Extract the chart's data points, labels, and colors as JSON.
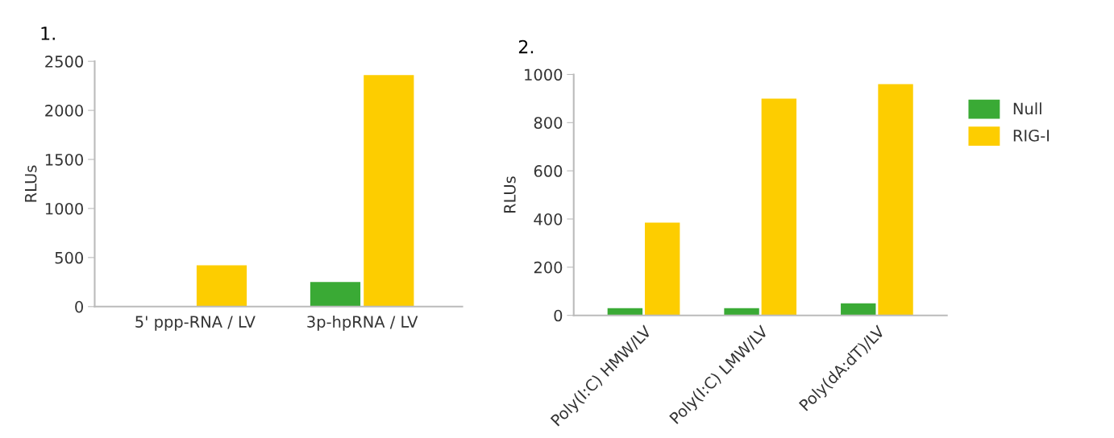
{
  "chart_data": [
    {
      "type": "bar",
      "title": "1.",
      "ylabel": "RLUs",
      "categories": [
        "5' ppp-RNA / LV",
        "3p-hpRNA / LV"
      ],
      "series": [
        {
          "color": "#3aaa35",
          "values": [
            0,
            250
          ]
        },
        {
          "color": "#fdcd00",
          "values": [
            420,
            2360
          ]
        }
      ],
      "ylim": [
        0,
        2500
      ],
      "yticks": [
        0,
        500,
        1000,
        1500,
        2000,
        2500
      ],
      "grid": false,
      "legend": false
    },
    {
      "type": "bar",
      "title": "2.",
      "ylabel": "RLUs",
      "categories": [
        "Poly(I:C) HMW/LV",
        "Poly(I:C) LMW/LV",
        "Poly(dA:dT)/LV"
      ],
      "series": [
        {
          "name": "Null",
          "color": "#3aaa35",
          "values": [
            30,
            30,
            50
          ]
        },
        {
          "name": "RIG-I",
          "color": "#fdcd00",
          "values": [
            385,
            900,
            960
          ]
        }
      ],
      "ylim": [
        0,
        1000
      ],
      "yticks": [
        0,
        200,
        400,
        600,
        800,
        1000
      ],
      "grid": false,
      "legend": "right"
    }
  ]
}
